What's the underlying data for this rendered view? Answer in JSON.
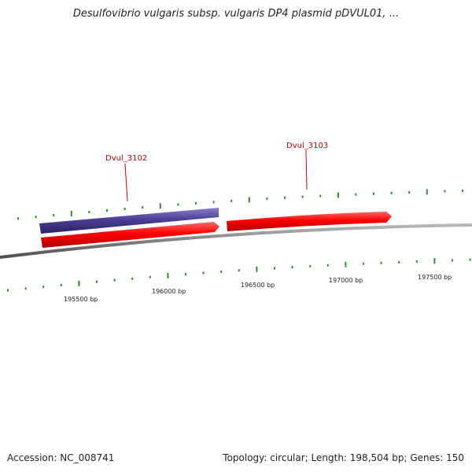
{
  "map": {
    "title": "Desulfovibrio vulgaris subsp. vulgaris DP4 plasmid pDVUL01, ...",
    "accession": "Accession: NC_008741",
    "summary": "Topology: circular; Length: 198,504 bp; Genes: 150",
    "colors": {
      "backbone": "#808080",
      "tick": "#2e8b2e",
      "forward_gene": "#ff0000",
      "reverse_gene": "#4b3f96",
      "label": "#cc0000"
    },
    "scale_labels": [
      "195500 bp",
      "196000 bp",
      "196500 bp",
      "197000 bp",
      "197500 bp"
    ],
    "genes": [
      {
        "name": "Dvul_3102",
        "strand": "reverse"
      },
      {
        "name": "",
        "strand": "forward"
      },
      {
        "name": "Dvul_3103",
        "strand": "forward"
      }
    ]
  }
}
